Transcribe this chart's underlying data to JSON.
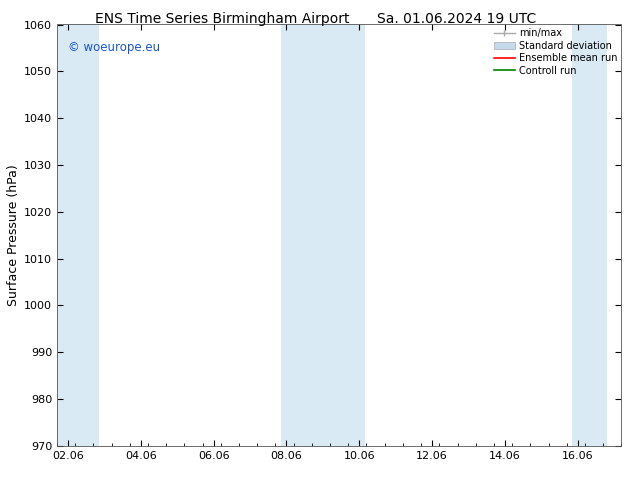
{
  "title_left": "ENS Time Series Birmingham Airport",
  "title_right": "Sa. 01.06.2024 19 UTC",
  "ylabel": "Surface Pressure (hPa)",
  "ylim": [
    970,
    1060
  ],
  "yticks": [
    970,
    980,
    990,
    1000,
    1010,
    1020,
    1030,
    1040,
    1050,
    1060
  ],
  "xlim_start": -0.3,
  "xlim_end": 14.8,
  "xtick_labels": [
    "02.06",
    "04.06",
    "06.06",
    "08.06",
    "10.06",
    "12.06",
    "14.06",
    "16.06"
  ],
  "xtick_positions": [
    0,
    2,
    4,
    6,
    8,
    10,
    12,
    14
  ],
  "shaded_bands": [
    {
      "x_start": -0.3,
      "x_end": 0.85
    },
    {
      "x_start": 5.85,
      "x_end": 8.15
    },
    {
      "x_start": 13.85,
      "x_end": 14.8
    }
  ],
  "shaded_color": "#daeaf5",
  "watermark_text": "© woeurope.eu",
  "watermark_color": "#1a56cc",
  "bg_color": "#ffffff",
  "legend_fontsize": 7,
  "title_fontsize": 10,
  "tick_fontsize": 8,
  "label_fontsize": 9
}
